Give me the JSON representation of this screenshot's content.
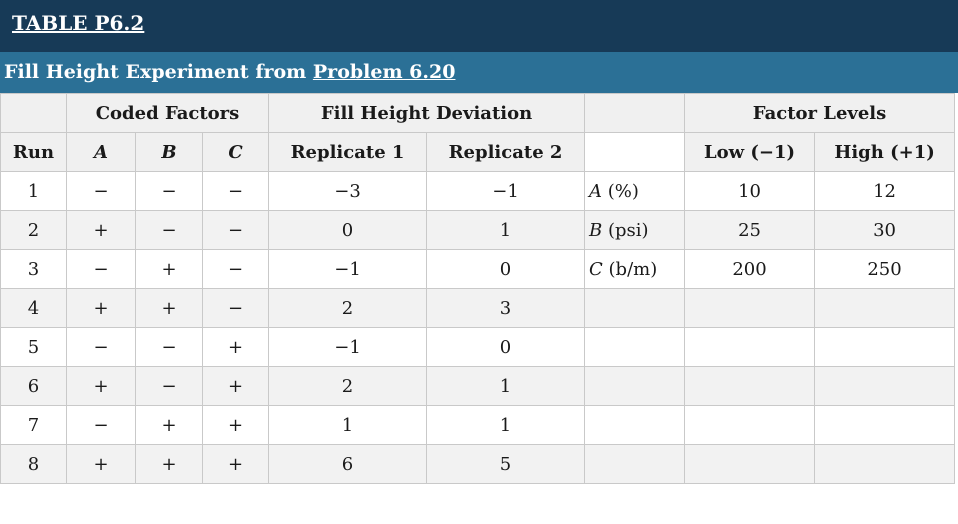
{
  "table_label": "TABLE P6.2",
  "caption": {
    "prefix": "Fill Height Experiment from ",
    "link": "Problem 6.20"
  },
  "header1": {
    "coded_factors": "Coded Factors",
    "fill_height_deviation": "Fill Height Deviation",
    "factor_levels": "Factor Levels"
  },
  "header2": {
    "run": "Run",
    "a": "A",
    "b": "B",
    "c": "C",
    "replicate1": "Replicate 1",
    "replicate2": "Replicate 2",
    "low": "Low (−1)",
    "high": "High (+1)"
  },
  "rows": [
    {
      "run": "1",
      "a": "−",
      "b": "−",
      "c": "−",
      "r1": "−3",
      "r2": "−1",
      "factor": "A",
      "unit": " (%)",
      "low": "10",
      "high": "12"
    },
    {
      "run": "2",
      "a": "+",
      "b": "−",
      "c": "−",
      "r1": "0",
      "r2": "1",
      "factor": "B",
      "unit": " (psi)",
      "low": "25",
      "high": "30"
    },
    {
      "run": "3",
      "a": "−",
      "b": "+",
      "c": "−",
      "r1": "−1",
      "r2": "0",
      "factor": "C",
      "unit": " (b/m)",
      "low": "200",
      "high": "250"
    },
    {
      "run": "4",
      "a": "+",
      "b": "+",
      "c": "−",
      "r1": "2",
      "r2": "3",
      "factor": "",
      "unit": "",
      "low": "",
      "high": ""
    },
    {
      "run": "5",
      "a": "−",
      "b": "−",
      "c": "+",
      "r1": "−1",
      "r2": "0",
      "factor": "",
      "unit": "",
      "low": "",
      "high": ""
    },
    {
      "run": "6",
      "a": "+",
      "b": "−",
      "c": "+",
      "r1": "2",
      "r2": "1",
      "factor": "",
      "unit": "",
      "low": "",
      "high": ""
    },
    {
      "run": "7",
      "a": "−",
      "b": "+",
      "c": "+",
      "r1": "1",
      "r2": "1",
      "factor": "",
      "unit": "",
      "low": "",
      "high": ""
    },
    {
      "run": "8",
      "a": "+",
      "b": "+",
      "c": "+",
      "r1": "6",
      "r2": "5",
      "factor": "",
      "unit": "",
      "low": "",
      "high": ""
    }
  ]
}
